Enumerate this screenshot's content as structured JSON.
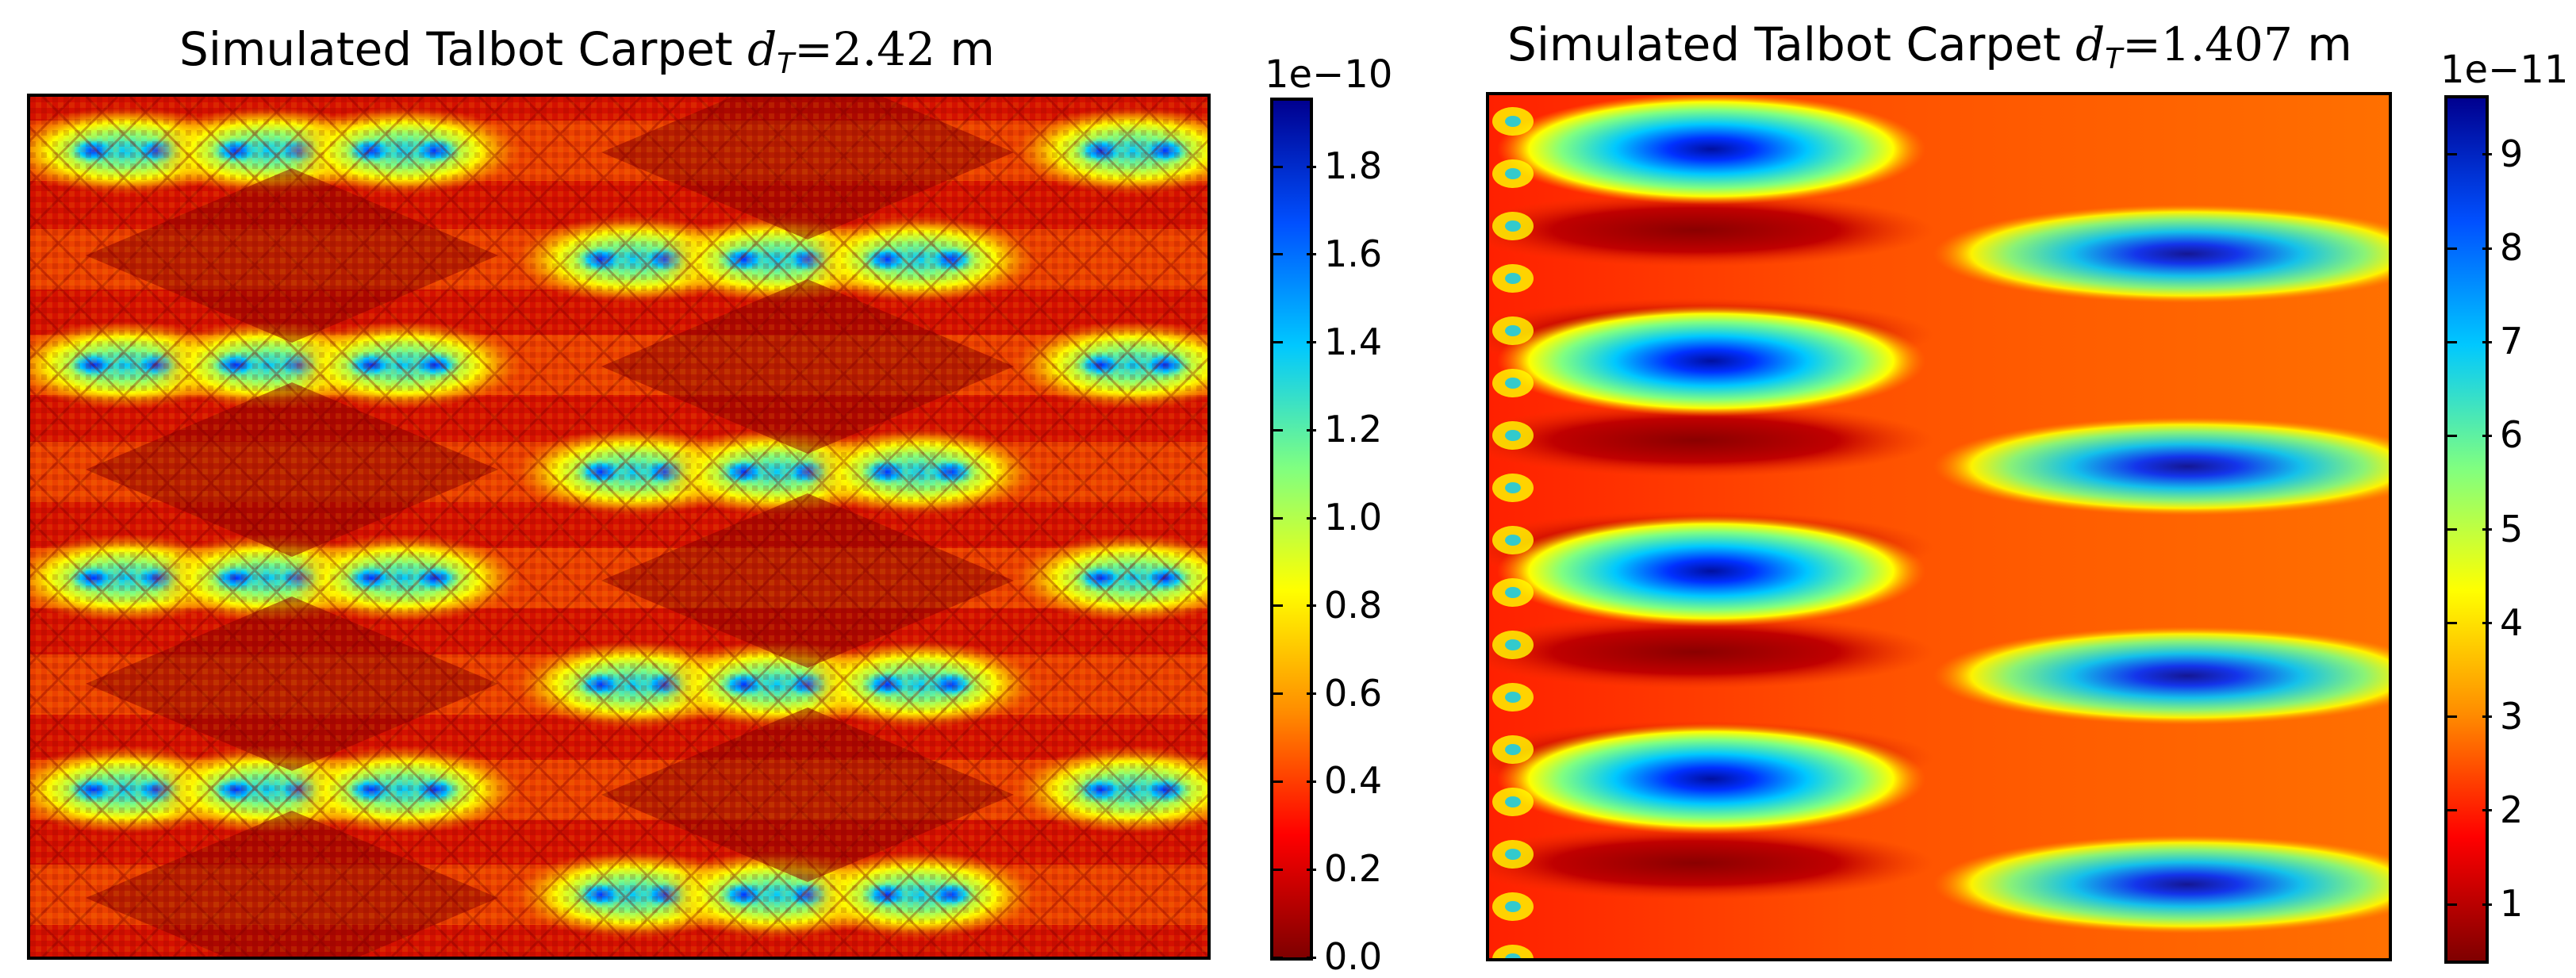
{
  "chart_data": [
    {
      "type": "heatmap",
      "title": "Simulated Talbot Carpet",
      "title_math_var": "d",
      "title_math_sub": "T",
      "title_math_value": "=2.42",
      "title_unit": " m",
      "colormap": "jet_reversed",
      "colorbar": {
        "exponent_label": "1e−10",
        "ticks": [
          "0.0",
          "0.2",
          "0.4",
          "0.6",
          "0.8",
          "1.0",
          "1.2",
          "1.4",
          "1.6",
          "1.8"
        ],
        "tick_values": [
          0.0,
          0.2,
          0.4,
          0.6,
          0.8,
          1.0,
          1.2,
          1.4,
          1.6,
          1.8
        ],
        "range": [
          0.0,
          1.95
        ]
      },
      "x_ticks_shown": false,
      "y_ticks_shown": false,
      "pattern": "fractal"
    },
    {
      "type": "heatmap",
      "title": "Simulated Talbot Carpet",
      "title_math_var": "d",
      "title_math_sub": "T",
      "title_math_value": "=1.407",
      "title_unit": " m",
      "colormap": "jet_reversed",
      "colorbar": {
        "exponent_label": "1e−11",
        "ticks": [
          "1",
          "2",
          "3",
          "4",
          "5",
          "6",
          "7",
          "8",
          "9"
        ],
        "tick_values": [
          1,
          2,
          3,
          4,
          5,
          6,
          7,
          8,
          9
        ],
        "range": [
          0.4,
          9.6
        ]
      },
      "x_ticks_shown": false,
      "y_ticks_shown": false,
      "pattern": "lobes"
    }
  ]
}
